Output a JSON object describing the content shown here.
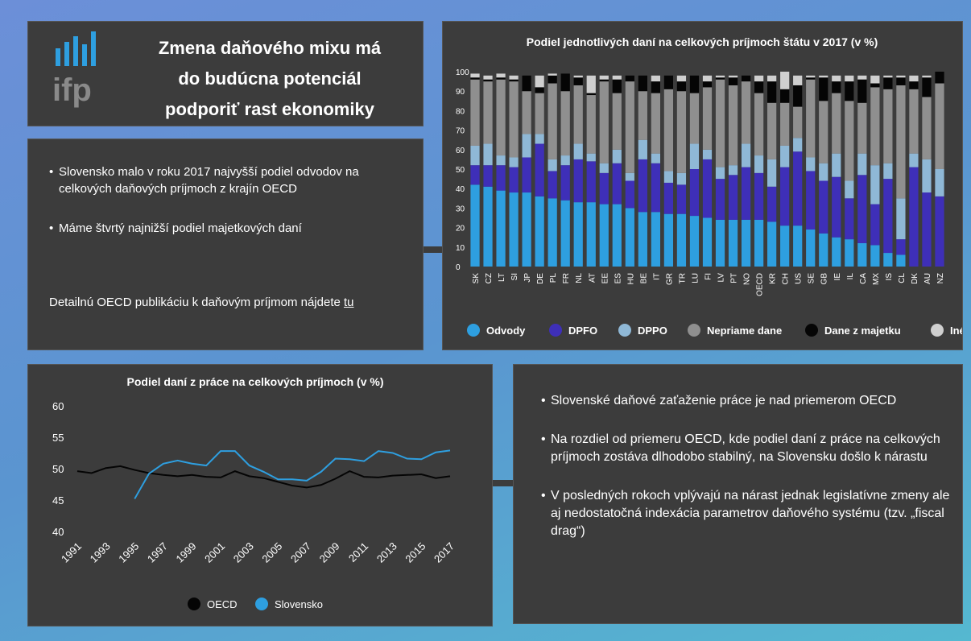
{
  "header": {
    "logo": "ifp",
    "title": [
      "Zmena daňového mixu má",
      "do budúcna potenciál",
      "podporiť rast ekonomiky"
    ]
  },
  "left_panel": {
    "bullets": [
      "Slovensko malo v roku 2017 najvyšší podiel odvodov na celkových daňových príjmoch z krajín OECD",
      "Máme štvrtý najnižší podiel majetkových daní"
    ],
    "link_text": "Detailnú OECD publikáciu k daňovým príjmom nájdete ",
    "link": "tu"
  },
  "right_panel": {
    "bullets": [
      "Slovenské daňové zaťaženie práce je nad priemerom OECD",
      "Na rozdiel od priemeru OECD, kde podiel daní z práce na celkových príjmoch zostáva dlhodobo stabilný, na Slovensku došlo k nárastu",
      "V posledných rokoch vplývajú na nárast jednak legislatívne zmeny ale aj nedostatočná indexácia parametrov daňového systému (tzv. „fiscal drag“)"
    ]
  },
  "chart_data": [
    {
      "type": "stacked_bar",
      "title": "Podiel jednotlivých daní na celkových príjmoch štátu v 2017 (v %)",
      "categories": [
        "SK",
        "CZ",
        "LT",
        "SI",
        "JP",
        "DE",
        "PL",
        "FR",
        "NL",
        "AT",
        "EE",
        "ES",
        "HU",
        "BE",
        "IT",
        "GR",
        "TR",
        "LU",
        "FI",
        "LV",
        "PT",
        "NO",
        "OECD",
        "KR",
        "CH",
        "US",
        "SE",
        "GB",
        "IE",
        "IL",
        "CA",
        "MX",
        "IS",
        "CL",
        "DK",
        "AU",
        "NZ"
      ],
      "series": [
        {
          "name": "Odvody",
          "color": "#2e9fe0",
          "values": [
            42,
            41,
            39,
            38,
            38,
            36,
            35,
            34,
            33,
            33,
            32,
            32,
            30,
            28,
            28,
            27,
            27,
            26,
            25,
            24,
            24,
            24,
            24,
            23,
            21,
            21,
            19,
            17,
            15,
            14,
            12,
            11,
            7,
            6,
            0,
            0,
            0
          ]
        },
        {
          "name": "DPFO",
          "color": "#3e2fb8",
          "values": [
            10,
            11,
            13,
            13,
            18,
            27,
            14,
            18,
            22,
            21,
            16,
            21,
            14,
            27,
            25,
            16,
            15,
            24,
            30,
            21,
            23,
            27,
            24,
            18,
            30,
            38,
            30,
            27,
            31,
            21,
            35,
            21,
            38,
            8,
            51,
            38,
            36
          ]
        },
        {
          "name": "DPPO",
          "color": "#8fb8d6",
          "values": [
            10,
            11,
            5,
            5,
            12,
            5,
            6,
            5,
            8,
            4,
            5,
            7,
            4,
            10,
            5,
            6,
            6,
            13,
            5,
            6,
            5,
            12,
            9,
            14,
            11,
            7,
            7,
            9,
            12,
            9,
            11,
            20,
            8,
            21,
            7,
            17,
            14
          ]
        },
        {
          "name": "Nepriame dane",
          "color": "#8f8f8f",
          "values": [
            34,
            32,
            39,
            39,
            22,
            21,
            39,
            33,
            30,
            30,
            42,
            29,
            47,
            25,
            31,
            42,
            42,
            26,
            32,
            45,
            41,
            32,
            32,
            29,
            22,
            16,
            40,
            32,
            31,
            41,
            26,
            40,
            38,
            58,
            33,
            32,
            44
          ]
        },
        {
          "name": "Dane z majetku",
          "color": "#050505",
          "values": [
            1,
            1,
            1,
            1,
            8,
            3,
            4,
            9,
            4,
            1,
            1,
            7,
            3,
            8,
            6,
            7,
            5,
            9,
            3,
            1,
            4,
            3,
            6,
            11,
            7,
            11,
            1,
            12,
            6,
            10,
            12,
            2,
            6,
            4,
            4,
            10,
            6
          ]
        },
        {
          "name": "Iné",
          "color": "#cfcfcf",
          "values": [
            2,
            2,
            2,
            2,
            0,
            6,
            1,
            0,
            1,
            9,
            2,
            2,
            0,
            0,
            3,
            0,
            3,
            0,
            3,
            1,
            1,
            0,
            3,
            3,
            9,
            5,
            1,
            1,
            3,
            3,
            2,
            4,
            1,
            1,
            3,
            1,
            0
          ]
        }
      ],
      "ylim": [
        0,
        100
      ],
      "yticks": [
        0,
        10,
        20,
        30,
        40,
        50,
        60,
        70,
        80,
        90,
        100
      ]
    },
    {
      "type": "line",
      "title": "Podiel daní z práce na celkových príjmoch (v %)",
      "x": [
        1991,
        1992,
        1993,
        1994,
        1995,
        1996,
        1997,
        1998,
        1999,
        2000,
        2001,
        2002,
        2003,
        2004,
        2005,
        2006,
        2007,
        2008,
        2009,
        2010,
        2011,
        2012,
        2013,
        2014,
        2015,
        2016,
        2017
      ],
      "series": [
        {
          "name": "OECD",
          "color": "#050505",
          "values": [
            49.6,
            49.3,
            50.1,
            50.4,
            49.8,
            49.3,
            49.0,
            48.8,
            49.0,
            48.7,
            48.6,
            49.6,
            48.8,
            48.5,
            47.9,
            47.3,
            47.0,
            47.4,
            48.4,
            49.6,
            48.7,
            48.6,
            48.9,
            49.0,
            49.1,
            48.5,
            48.8
          ]
        },
        {
          "name": "Slovensko",
          "color": "#2e9fe0",
          "values": [
            null,
            null,
            null,
            null,
            45.2,
            49.2,
            50.8,
            51.3,
            50.8,
            50.5,
            52.8,
            52.8,
            50.5,
            49.5,
            48.3,
            48.3,
            48.1,
            49.5,
            51.6,
            51.5,
            51.2,
            52.8,
            52.5,
            51.6,
            51.5,
            52.6,
            52.9
          ]
        }
      ],
      "xlim": [
        1991,
        2017
      ],
      "xticks": [
        1991,
        1993,
        1995,
        1997,
        1999,
        2001,
        2003,
        2005,
        2007,
        2009,
        2011,
        2013,
        2015,
        2017
      ],
      "ylim": [
        40,
        60
      ],
      "yticks": [
        40,
        45,
        50,
        55,
        60
      ]
    }
  ]
}
